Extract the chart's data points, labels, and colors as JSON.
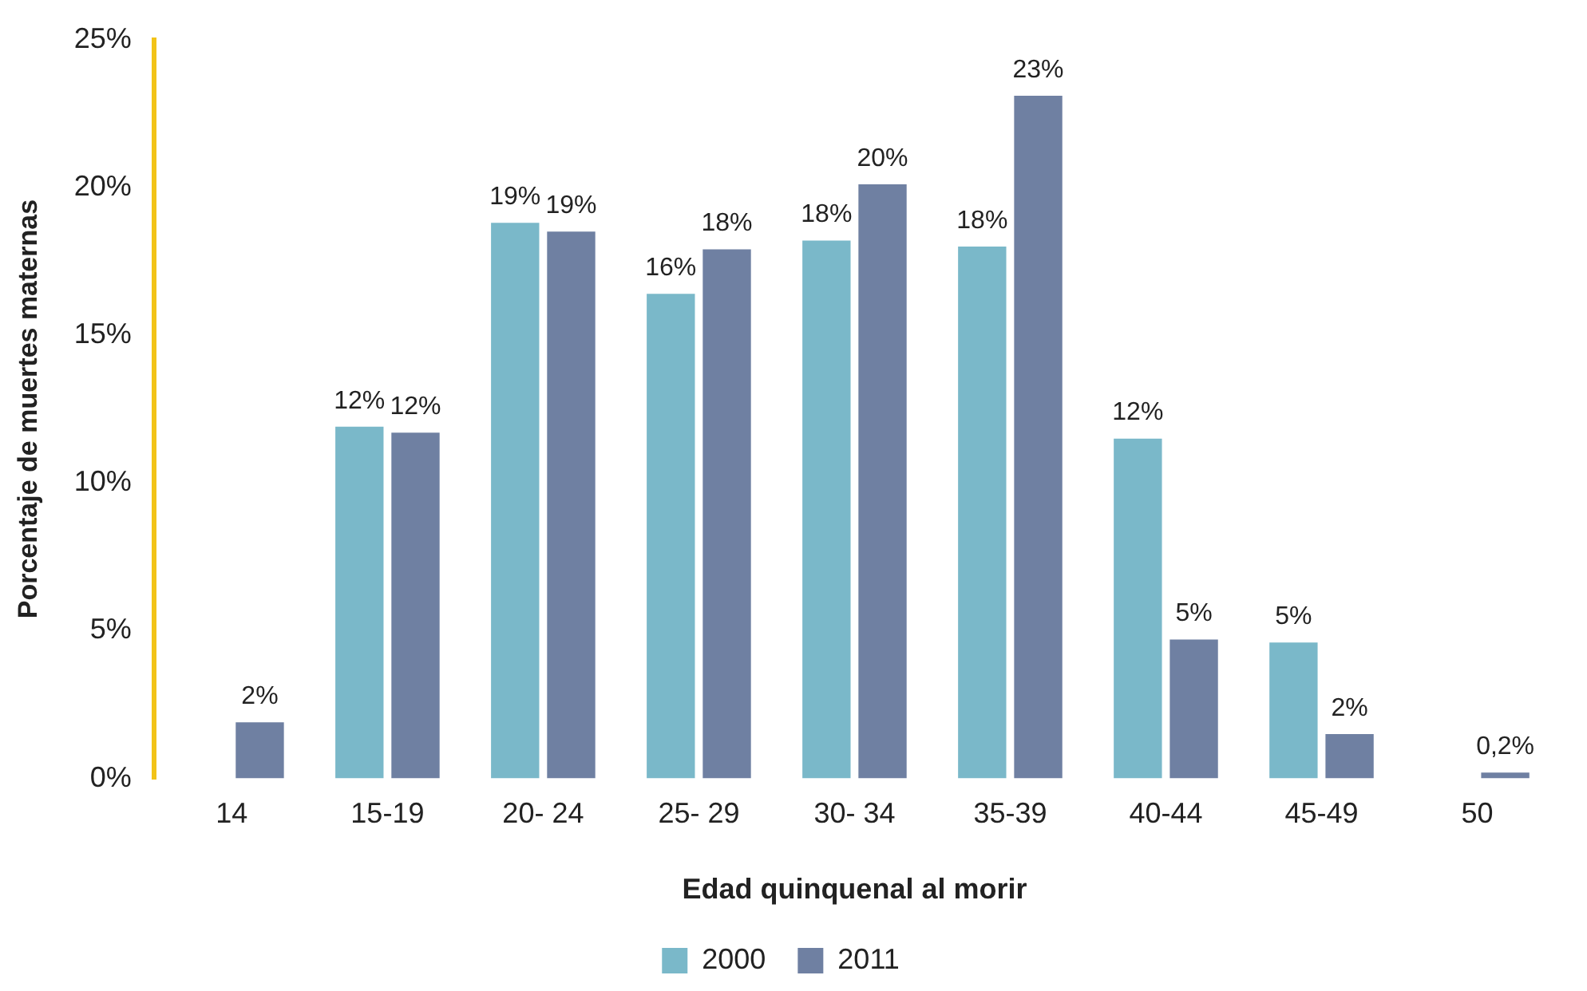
{
  "chart_data": {
    "type": "bar",
    "xlabel": "Edad quinquenal al morir",
    "ylabel": "Porcentaje de muertes maternas",
    "categories": [
      "14",
      "15-19",
      "20- 24",
      "25- 29",
      "30- 34",
      "35-39",
      "40-44",
      "45-49",
      "50"
    ],
    "series": [
      {
        "name": "2000",
        "color": "#7ab8c9",
        "values": [
          null,
          11.9,
          18.8,
          16.4,
          18.2,
          18.0,
          11.5,
          4.6,
          null
        ],
        "value_labels": [
          null,
          "12%",
          "19%",
          "16%",
          "18%",
          "18%",
          "12%",
          "5%",
          null
        ]
      },
      {
        "name": "2011",
        "color": "#6f80a2",
        "values": [
          1.9,
          11.7,
          18.5,
          17.9,
          20.1,
          23.1,
          4.7,
          1.5,
          0.2
        ],
        "value_labels": [
          "2%",
          "12%",
          "19%",
          "18%",
          "20%",
          "23%",
          "5%",
          "2%",
          "0,2%"
        ]
      }
    ],
    "ylim": [
      0,
      25
    ],
    "yticks": [
      {
        "value": 0,
        "label": "0%"
      },
      {
        "value": 5,
        "label": "5%"
      },
      {
        "value": 10,
        "label": "10%"
      },
      {
        "value": 15,
        "label": "15%"
      },
      {
        "value": 20,
        "label": "20%"
      },
      {
        "value": 25,
        "label": "25%"
      }
    ],
    "grid": false,
    "legend": "bottom"
  }
}
